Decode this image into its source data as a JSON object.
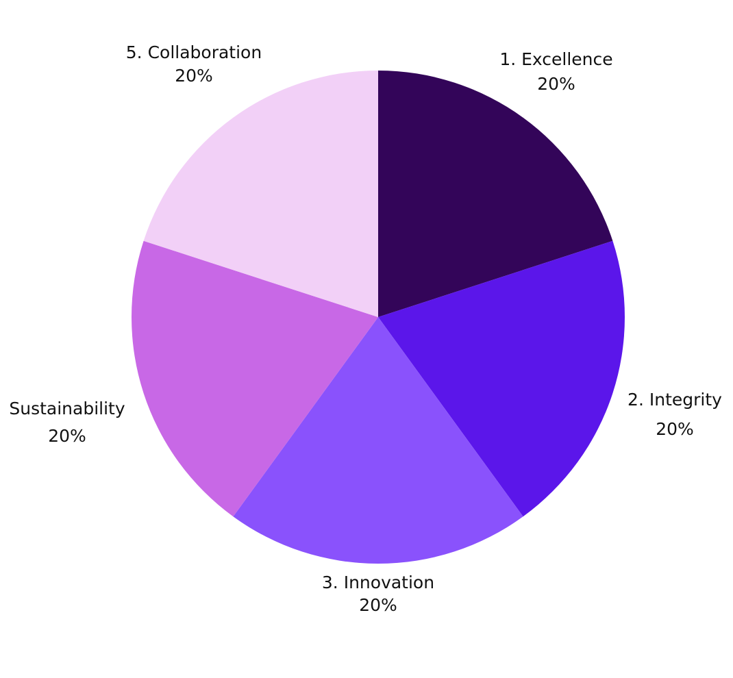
{
  "chart_data": {
    "type": "pie",
    "categories": [
      "1. Excellence",
      "2. Integrity",
      "3. Innovation",
      "Sustainability",
      "5. Collaboration"
    ],
    "values": [
      20,
      20,
      20,
      20,
      20
    ],
    "value_labels": [
      "20%",
      "20%",
      "20%",
      "20%",
      "20%"
    ],
    "colors": [
      "#330559",
      "#5b16ea",
      "#8a52fc",
      "#c868e6",
      "#f2d0f7"
    ]
  }
}
